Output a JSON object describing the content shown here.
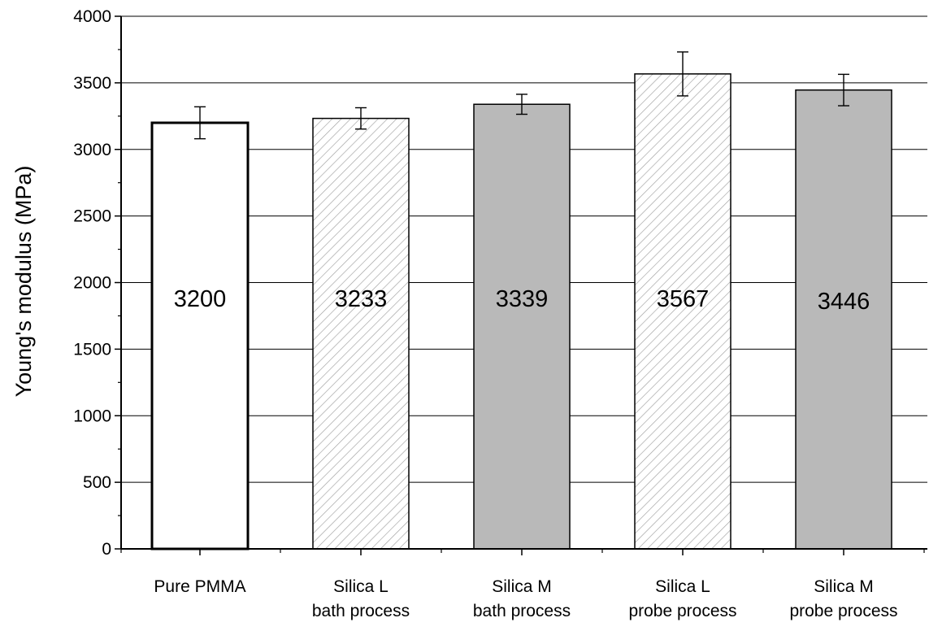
{
  "chart_data": {
    "type": "bar",
    "title": "",
    "xlabel": "",
    "ylabel": "Young's modulus (MPa)",
    "ylim": [
      0,
      4000
    ],
    "y_major_ticks": [
      0,
      500,
      1000,
      1500,
      2000,
      2500,
      3000,
      3500,
      4000
    ],
    "y_minor_step": 250,
    "grid": true,
    "legend": "none",
    "categories": [
      [
        "Pure PMMA"
      ],
      [
        "Silica L",
        "bath process"
      ],
      [
        "Silica M",
        "bath process"
      ],
      [
        "Silica L",
        "probe process"
      ],
      [
        "Silica M",
        "probe process"
      ]
    ],
    "values": [
      3200,
      3233,
      3339,
      3567,
      3446
    ],
    "value_labels": [
      "3200",
      "3233",
      "3339",
      "3567",
      "3446"
    ],
    "error_bars": [
      120,
      80,
      75,
      165,
      118
    ],
    "fills": [
      "white",
      "hatch",
      "gray",
      "hatch",
      "gray"
    ],
    "colors": {
      "gray": "#b9b9b9",
      "hatch": "#a0a0a0",
      "axis": "#000000",
      "grid": "#000000"
    }
  }
}
